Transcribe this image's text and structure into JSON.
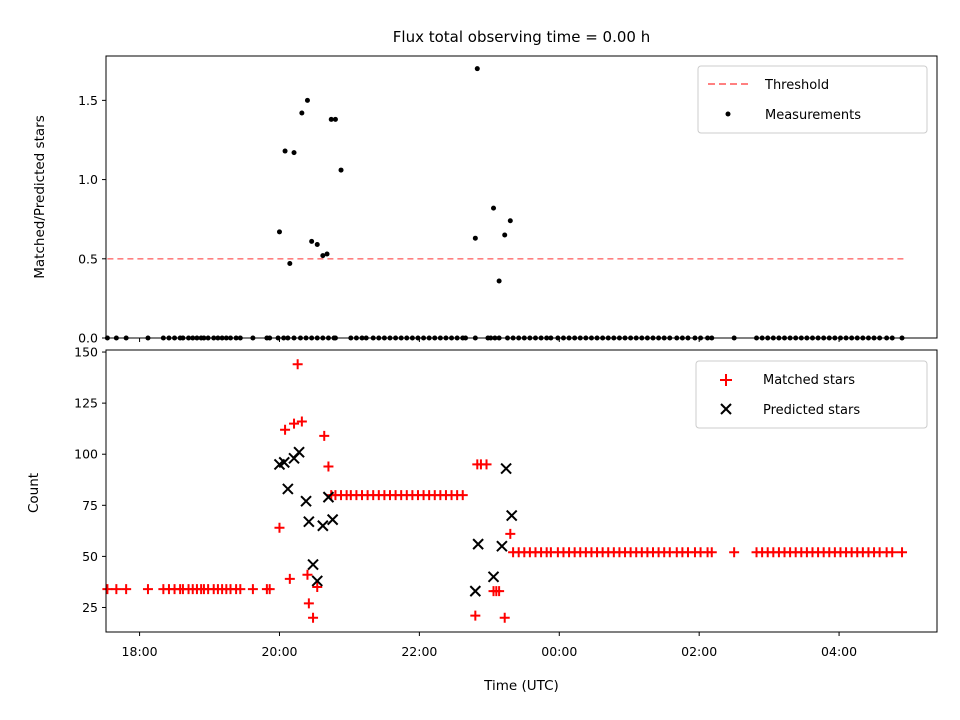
{
  "chart_data": [
    {
      "type": "scatter",
      "title": "Flux total observing time = 0.00 h",
      "xlabel": "",
      "ylabel": "Matched/Predicted stars",
      "xlim": [
        -0.2,
        29.5
      ],
      "ylim": [
        0.0,
        1.78
      ],
      "yticks": [
        0.0,
        0.5,
        1.0,
        1.5
      ],
      "ytick_labels": [
        "0.0",
        "0.5",
        "1.0",
        "1.5"
      ],
      "legend": "top-right",
      "series": [
        {
          "name": "Threshold",
          "kind": "dashed-line",
          "color": "#ff8080",
          "x": [
            -0.15,
            28.3
          ],
          "y": [
            0.5,
            0.5
          ]
        },
        {
          "name": "Measurements",
          "kind": "dots",
          "color": "#000000",
          "x": [
            -0.15,
            0.17,
            0.52,
            1.3,
            1.85,
            2.05,
            2.25,
            2.45,
            2.55,
            2.75,
            2.9,
            3.05,
            3.2,
            3.3,
            3.45,
            3.65,
            3.8,
            3.95,
            4.1,
            4.25,
            4.45,
            4.6,
            5.05,
            5.55,
            5.65,
            5.95,
            6.15,
            6.3,
            6.52,
            6.75,
            6.95,
            7.15,
            7.35,
            7.55,
            7.75,
            7.95,
            8.0,
            8.55,
            8.75,
            8.95,
            9.1,
            9.35,
            9.55,
            9.75,
            9.95,
            10.15,
            10.35,
            10.55,
            10.75,
            10.95,
            11.15,
            11.35,
            11.55,
            11.75,
            11.95,
            12.15,
            12.35,
            12.55,
            12.65,
            13.0,
            13.45,
            13.55,
            13.7,
            13.85,
            14.15,
            14.35,
            14.55,
            14.75,
            14.95,
            15.15,
            15.35,
            15.55,
            15.7,
            15.95,
            16.15,
            16.35,
            16.55,
            16.75,
            16.95,
            17.15,
            17.35,
            17.55,
            17.75,
            17.95,
            18.15,
            18.35,
            18.55,
            18.75,
            18.95,
            19.15,
            19.35,
            19.55,
            19.75,
            19.95,
            20.2,
            20.4,
            20.6,
            20.85,
            21.05,
            21.3,
            21.45,
            22.25,
            23.05,
            23.25,
            23.45,
            23.65,
            23.85,
            24.05,
            24.25,
            24.45,
            24.65,
            24.85,
            25.05,
            25.25,
            25.45,
            25.65,
            25.85,
            26.05,
            26.25,
            26.45,
            26.65,
            26.85,
            27.05,
            27.25,
            27.45,
            27.7,
            27.9,
            28.25,
            6.0,
            6.2,
            6.37,
            6.52,
            6.8,
            7.0,
            7.15,
            7.35,
            7.55,
            7.7,
            7.85,
            8.0,
            8.2,
            13.0,
            13.07,
            13.65,
            13.85,
            14.05,
            14.25
          ],
          "y": [
            0.0,
            0.0,
            0.0,
            0.0,
            0.0,
            0.0,
            0.0,
            0.0,
            0.0,
            0.0,
            0.0,
            0.0,
            0.0,
            0.0,
            0.0,
            0.0,
            0.0,
            0.0,
            0.0,
            0.0,
            0.0,
            0.0,
            0.0,
            0.0,
            0.0,
            0.0,
            0.0,
            0.0,
            0.0,
            0.0,
            0.0,
            0.0,
            0.0,
            0.0,
            0.0,
            0.0,
            0.0,
            0.0,
            0.0,
            0.0,
            0.0,
            0.0,
            0.0,
            0.0,
            0.0,
            0.0,
            0.0,
            0.0,
            0.0,
            0.0,
            0.0,
            0.0,
            0.0,
            0.0,
            0.0,
            0.0,
            0.0,
            0.0,
            0.0,
            0.0,
            0.0,
            0.0,
            0.0,
            0.0,
            0.0,
            0.0,
            0.0,
            0.0,
            0.0,
            0.0,
            0.0,
            0.0,
            0.0,
            0.0,
            0.0,
            0.0,
            0.0,
            0.0,
            0.0,
            0.0,
            0.0,
            0.0,
            0.0,
            0.0,
            0.0,
            0.0,
            0.0,
            0.0,
            0.0,
            0.0,
            0.0,
            0.0,
            0.0,
            0.0,
            0.0,
            0.0,
            0.0,
            0.0,
            0.0,
            0.0,
            0.0,
            0.0,
            0.0,
            0.0,
            0.0,
            0.0,
            0.0,
            0.0,
            0.0,
            0.0,
            0.0,
            0.0,
            0.0,
            0.0,
            0.0,
            0.0,
            0.0,
            0.0,
            0.0,
            0.0,
            0.0,
            0.0,
            0.0,
            0.0,
            0.0,
            0.0,
            0.0,
            0.0,
            0.67,
            1.18,
            0.47,
            1.17,
            1.42,
            1.5,
            0.61,
            0.59,
            0.52,
            0.53,
            1.38,
            1.38,
            1.06,
            0.63,
            1.7,
            0.82,
            0.36,
            0.65,
            0.74
          ]
        }
      ]
    },
    {
      "type": "scatter",
      "title": "",
      "xlabel": "Time (UTC)",
      "ylabel": "Count",
      "xlim": [
        -0.2,
        29.5
      ],
      "ylim": [
        13,
        151
      ],
      "yticks": [
        25,
        50,
        75,
        100,
        125,
        150
      ],
      "ytick_labels": [
        "25",
        "50",
        "75",
        "100",
        "125",
        "150"
      ],
      "x_tick_values": [
        1,
        6,
        11,
        16,
        21,
        26
      ],
      "x_tick_labels": [
        "18:00",
        "20:00",
        "22:00",
        "00:00",
        "02:00",
        "04:00"
      ],
      "legend": "top-right",
      "series": [
        {
          "name": "Matched stars",
          "kind": "plus",
          "color": "#ff0000",
          "x": [
            -0.15,
            0.17,
            0.52,
            1.3,
            1.85,
            2.05,
            2.25,
            2.45,
            2.55,
            2.75,
            2.9,
            3.05,
            3.2,
            3.3,
            3.45,
            3.65,
            3.8,
            3.95,
            4.1,
            4.25,
            4.45,
            4.6,
            5.05,
            5.55,
            5.65,
            6.0,
            6.2,
            6.37,
            6.52,
            6.65,
            6.8,
            7.0,
            7.05,
            7.2,
            7.35,
            7.6,
            7.75,
            7.85,
            8.0,
            8.2,
            8.4,
            8.55,
            8.75,
            8.95,
            9.15,
            9.35,
            9.55,
            9.75,
            9.95,
            10.15,
            10.35,
            10.55,
            10.75,
            10.95,
            11.15,
            11.35,
            11.55,
            11.75,
            11.95,
            12.15,
            12.35,
            12.55,
            13.0,
            13.07,
            13.2,
            13.4,
            13.65,
            13.75,
            13.85,
            14.05,
            14.25,
            14.35,
            14.55,
            14.75,
            14.95,
            15.15,
            15.35,
            15.55,
            15.7,
            15.95,
            16.15,
            16.35,
            16.55,
            16.75,
            16.95,
            17.15,
            17.35,
            17.55,
            17.75,
            17.95,
            18.15,
            18.35,
            18.55,
            18.75,
            18.95,
            19.15,
            19.35,
            19.55,
            19.75,
            19.95,
            20.2,
            20.4,
            20.6,
            20.85,
            21.05,
            21.3,
            21.45,
            22.25,
            23.05,
            23.25,
            23.45,
            23.65,
            23.85,
            24.05,
            24.25,
            24.45,
            24.65,
            24.85,
            25.05,
            25.25,
            25.45,
            25.65,
            25.85,
            26.05,
            26.25,
            26.45,
            26.65,
            26.85,
            27.05,
            27.25,
            27.45,
            27.7,
            27.9,
            28.25
          ],
          "y": [
            34,
            34,
            34,
            34,
            34,
            34,
            34,
            34,
            34,
            34,
            34,
            34,
            34,
            34,
            34,
            34,
            34,
            34,
            34,
            34,
            34,
            34,
            34,
            34,
            34,
            64,
            112,
            39,
            115,
            144,
            116,
            41,
            27,
            20,
            35,
            109,
            94,
            80,
            80,
            80,
            80,
            80,
            80,
            80,
            80,
            80,
            80,
            80,
            80,
            80,
            80,
            80,
            80,
            80,
            80,
            80,
            80,
            80,
            80,
            80,
            80,
            80,
            21,
            95,
            95,
            95,
            33,
            33,
            33,
            20,
            61,
            52,
            52,
            52,
            52,
            52,
            52,
            52,
            52,
            52,
            52,
            52,
            52,
            52,
            52,
            52,
            52,
            52,
            52,
            52,
            52,
            52,
            52,
            52,
            52,
            52,
            52,
            52,
            52,
            52,
            52,
            52,
            52,
            52,
            52,
            52,
            52,
            52,
            52,
            52,
            52,
            52,
            52,
            52,
            52,
            52,
            52,
            52,
            52,
            52,
            52,
            52,
            52,
            52,
            52,
            52,
            52,
            52,
            52,
            52,
            52,
            52,
            52,
            52
          ]
        },
        {
          "name": "Predicted stars",
          "kind": "cross",
          "color": "#000000",
          "x": [
            6.0,
            6.17,
            6.3,
            6.52,
            6.7,
            6.95,
            7.05,
            7.2,
            7.35,
            7.55,
            7.75,
            7.9,
            13.0,
            13.1,
            13.65,
            13.95,
            14.1,
            14.3
          ],
          "y": [
            95,
            96,
            83,
            98,
            101,
            77,
            67,
            46,
            38,
            65,
            79,
            68,
            33,
            56,
            40,
            55,
            93,
            70
          ]
        }
      ]
    }
  ]
}
